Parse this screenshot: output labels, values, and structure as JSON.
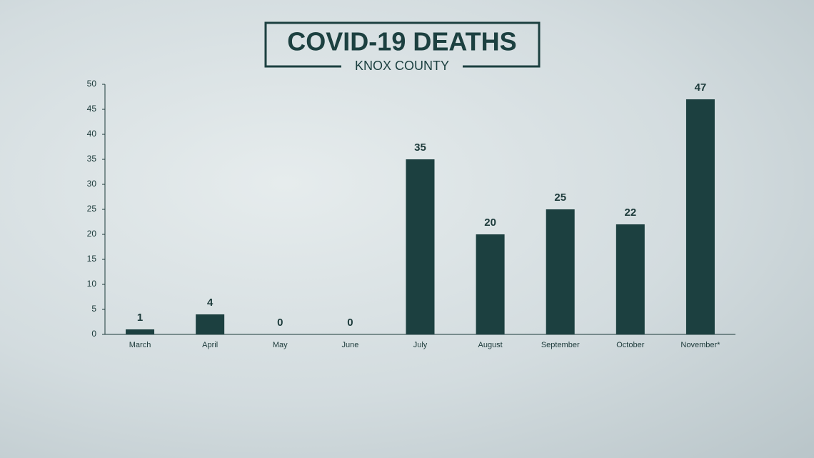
{
  "chart_data": {
    "type": "bar",
    "title": "COVID-19 DEATHS",
    "subtitle": "KNOX COUNTY",
    "categories": [
      "March",
      "April",
      "May",
      "June",
      "July",
      "August",
      "September",
      "October",
      "November*"
    ],
    "values": [
      1,
      4,
      0,
      0,
      35,
      20,
      25,
      22,
      47
    ],
    "color": "#1c4040",
    "ylim": [
      0,
      50
    ],
    "yticks": [
      0,
      5,
      10,
      15,
      20,
      25,
      30,
      35,
      40,
      45,
      50
    ]
  }
}
